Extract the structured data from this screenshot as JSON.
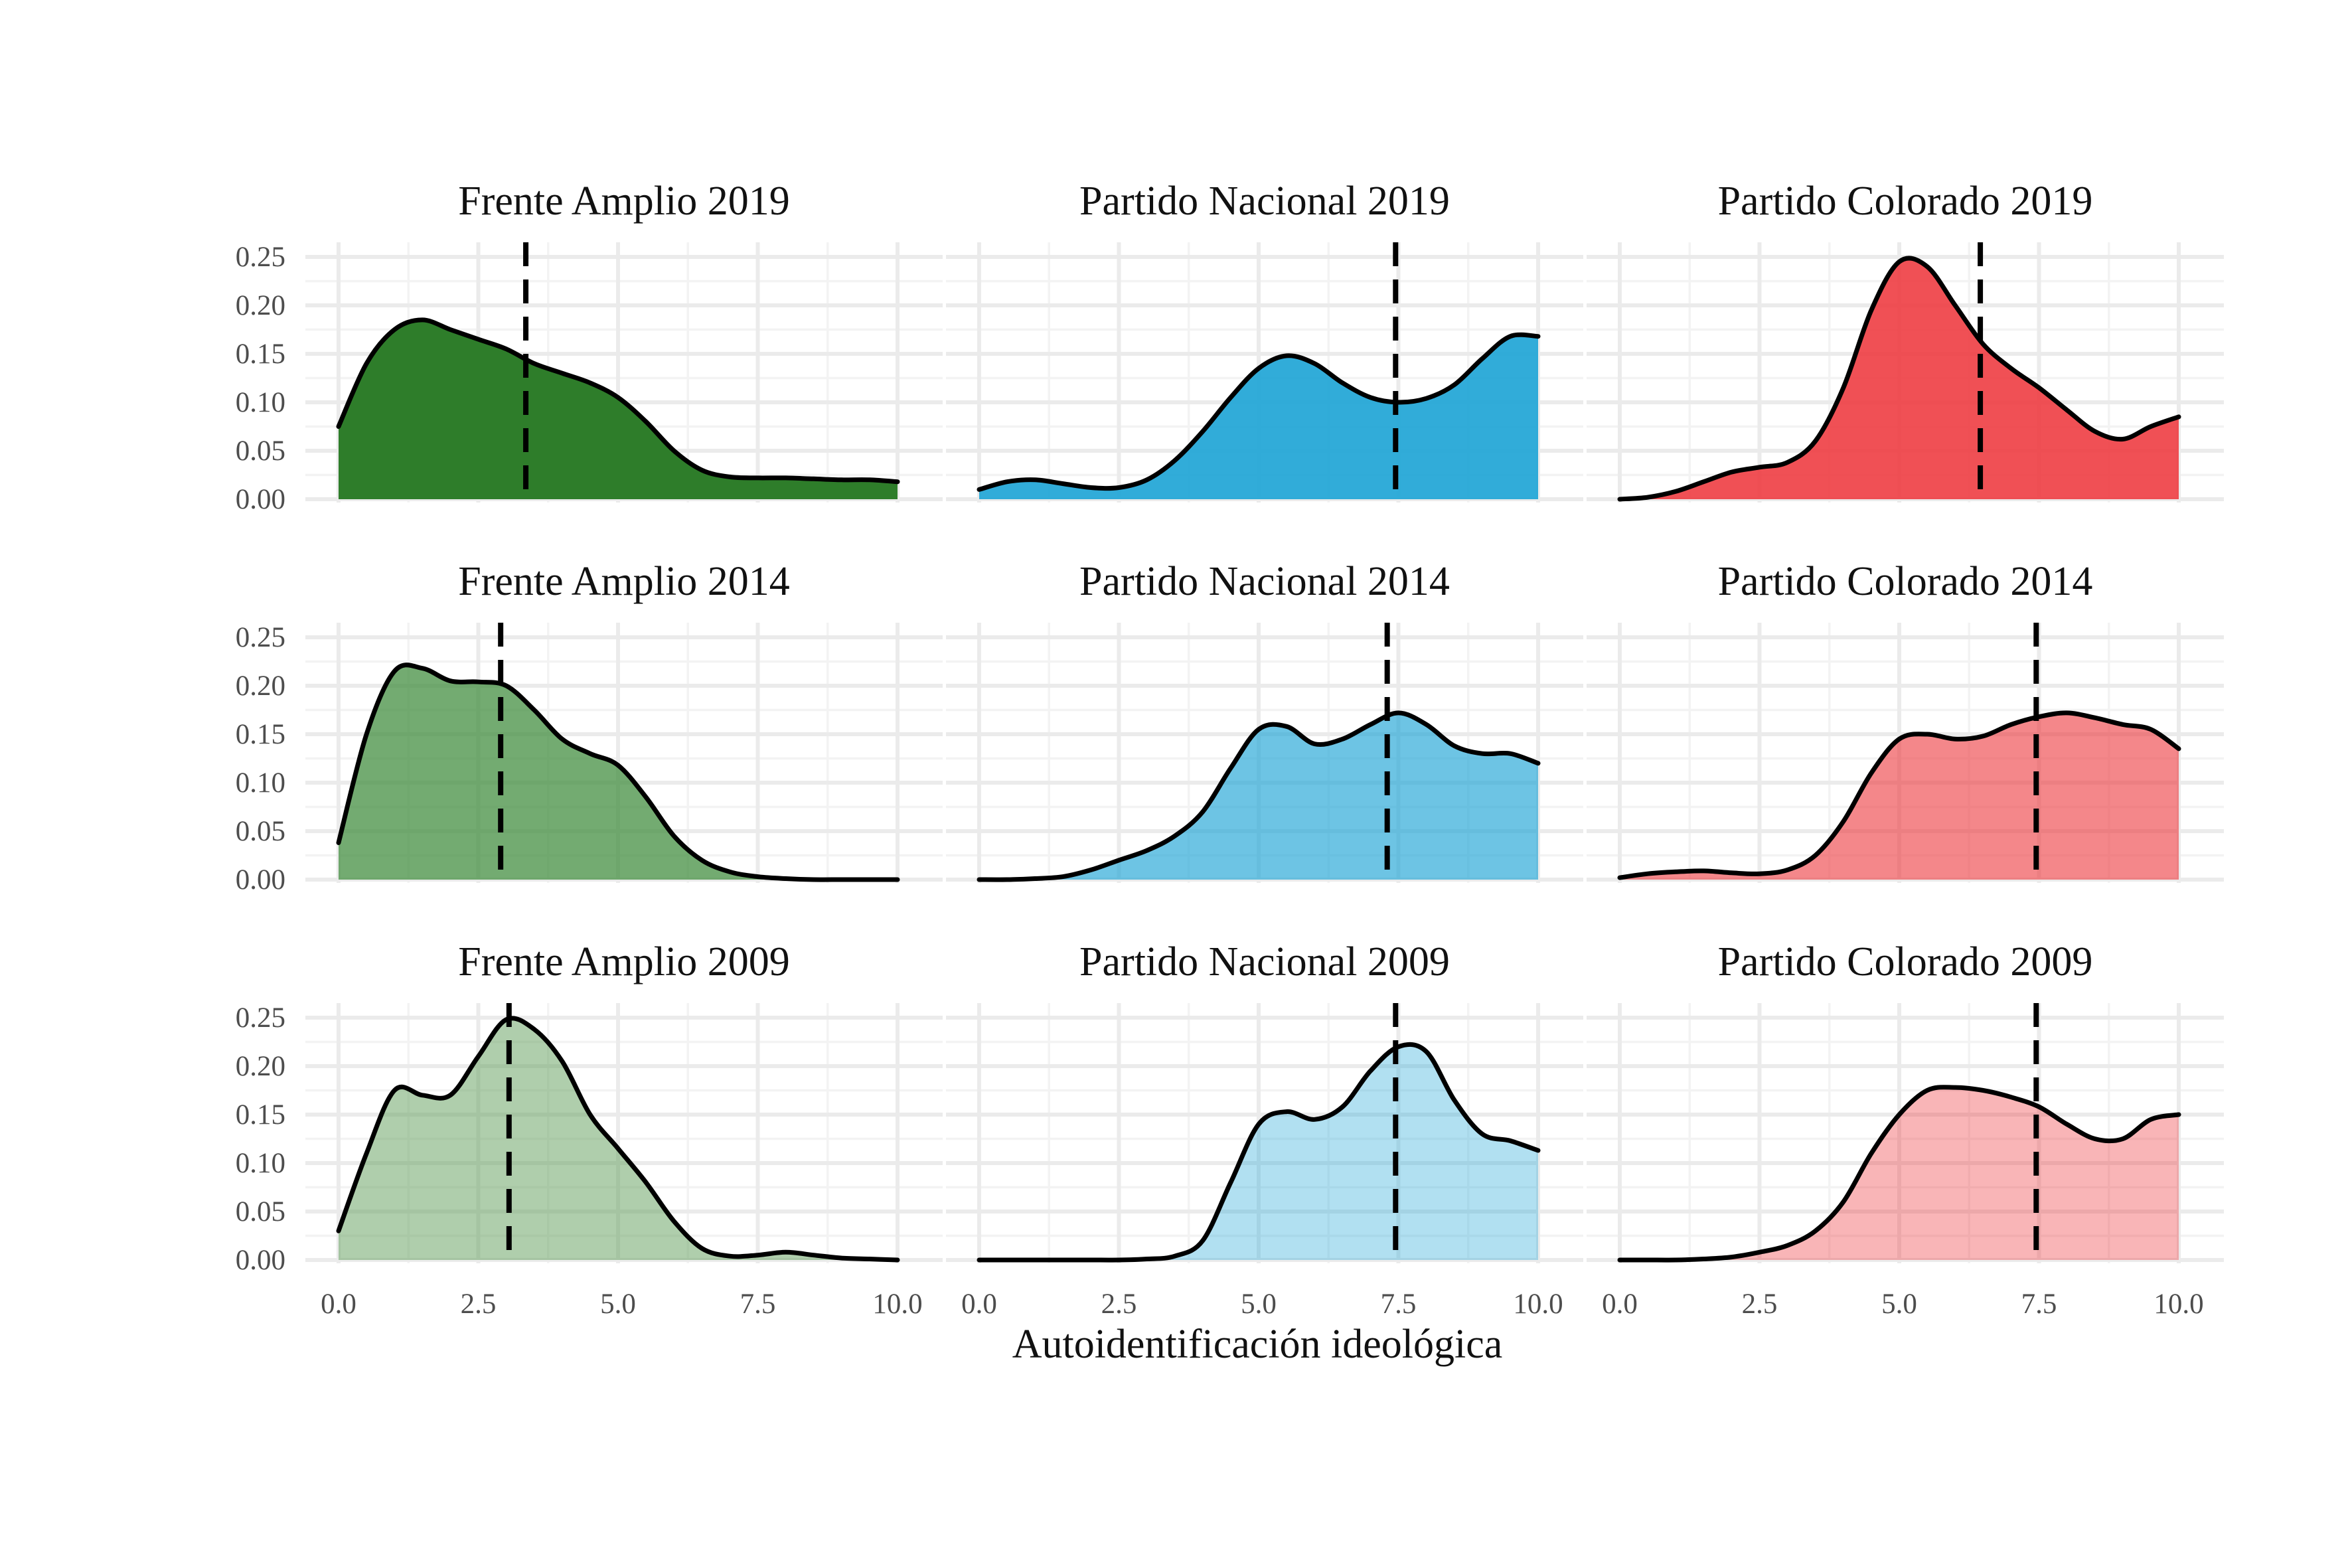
{
  "figure": {
    "xlabel": "Autoidentificación ideológica",
    "xlim": [
      0,
      10
    ],
    "ylim": [
      0,
      0.25
    ],
    "x_ticks": [
      "0.0",
      "2.5",
      "5.0",
      "7.5",
      "10.0"
    ],
    "y_ticks": [
      "0.00",
      "0.05",
      "0.10",
      "0.15",
      "0.20",
      "0.25"
    ],
    "grid": true
  },
  "chart_data": [
    {
      "type": "area",
      "title": "Frente Amplio 2019",
      "row": 0,
      "col": 0,
      "color": "#2e7d2a",
      "opacity": 1.0,
      "median": 3.35,
      "x": [
        0,
        0.5,
        1,
        1.5,
        2,
        2.5,
        3,
        3.5,
        4,
        4.5,
        5,
        5.5,
        6,
        6.5,
        7,
        7.5,
        8,
        8.5,
        9,
        9.5,
        10
      ],
      "y": [
        0.075,
        0.14,
        0.175,
        0.185,
        0.175,
        0.165,
        0.155,
        0.14,
        0.13,
        0.12,
        0.105,
        0.08,
        0.05,
        0.03,
        0.023,
        0.022,
        0.022,
        0.021,
        0.02,
        0.02,
        0.018
      ]
    },
    {
      "type": "area",
      "title": "Partido Nacional 2019",
      "row": 0,
      "col": 1,
      "color": "#1fa5d6",
      "opacity": 0.92,
      "median": 7.45,
      "x": [
        0,
        0.5,
        1,
        1.5,
        2,
        2.5,
        3,
        3.5,
        4,
        4.5,
        5,
        5.5,
        6,
        6.5,
        7,
        7.5,
        8,
        8.5,
        9,
        9.5,
        10
      ],
      "y": [
        0.01,
        0.018,
        0.02,
        0.016,
        0.012,
        0.012,
        0.02,
        0.04,
        0.07,
        0.105,
        0.135,
        0.148,
        0.14,
        0.12,
        0.105,
        0.1,
        0.104,
        0.118,
        0.145,
        0.168,
        0.168
      ]
    },
    {
      "type": "area",
      "title": "Partido Colorado 2019",
      "row": 0,
      "col": 2,
      "color": "#ee3d42",
      "opacity": 0.9,
      "median": 6.45,
      "x": [
        0,
        0.5,
        1,
        1.5,
        2,
        2.5,
        3,
        3.5,
        4,
        4.5,
        5,
        5.5,
        6,
        6.5,
        7,
        7.5,
        8,
        8.5,
        9,
        9.5,
        10
      ],
      "y": [
        0.0,
        0.002,
        0.008,
        0.018,
        0.028,
        0.033,
        0.038,
        0.06,
        0.115,
        0.195,
        0.245,
        0.24,
        0.2,
        0.16,
        0.135,
        0.115,
        0.092,
        0.07,
        0.062,
        0.075,
        0.085
      ]
    },
    {
      "type": "area",
      "title": "Frente Amplio 2014",
      "row": 1,
      "col": 0,
      "color": "#3d8b3a",
      "opacity": 0.72,
      "median": 2.9,
      "x": [
        0,
        0.5,
        1,
        1.5,
        2,
        2.5,
        3,
        3.5,
        4,
        4.5,
        5,
        5.5,
        6,
        6.5,
        7,
        7.5,
        8,
        8.5,
        9,
        9.5,
        10
      ],
      "y": [
        0.038,
        0.15,
        0.215,
        0.218,
        0.205,
        0.204,
        0.2,
        0.175,
        0.145,
        0.13,
        0.118,
        0.085,
        0.045,
        0.02,
        0.008,
        0.003,
        0.001,
        0.0,
        0.0,
        0.0,
        0.0
      ]
    },
    {
      "type": "area",
      "title": "Partido Nacional 2014",
      "row": 1,
      "col": 1,
      "color": "#1fa5d6",
      "opacity": 0.65,
      "median": 7.3,
      "x": [
        0,
        0.5,
        1,
        1.5,
        2,
        2.5,
        3,
        3.5,
        4,
        4.5,
        5,
        5.5,
        6,
        6.5,
        7,
        7.5,
        8,
        8.5,
        9,
        9.5,
        10
      ],
      "y": [
        0.0,
        0.0,
        0.001,
        0.003,
        0.01,
        0.02,
        0.03,
        0.045,
        0.07,
        0.115,
        0.155,
        0.158,
        0.14,
        0.145,
        0.16,
        0.172,
        0.16,
        0.138,
        0.13,
        0.13,
        0.12
      ]
    },
    {
      "type": "area",
      "title": "Partido Colorado 2014",
      "row": 1,
      "col": 2,
      "color": "#ee3d42",
      "opacity": 0.62,
      "median": 7.45,
      "x": [
        0,
        0.5,
        1,
        1.5,
        2,
        2.5,
        3,
        3.5,
        4,
        4.5,
        5,
        5.5,
        6,
        6.5,
        7,
        7.5,
        8,
        8.5,
        9,
        9.5,
        10
      ],
      "y": [
        0.002,
        0.006,
        0.008,
        0.009,
        0.007,
        0.006,
        0.01,
        0.025,
        0.06,
        0.11,
        0.145,
        0.15,
        0.145,
        0.148,
        0.16,
        0.168,
        0.172,
        0.167,
        0.16,
        0.155,
        0.135
      ]
    },
    {
      "type": "area",
      "title": "Frente Amplio 2009",
      "row": 2,
      "col": 0,
      "color": "#5f9e5a",
      "opacity": 0.5,
      "median": 3.05,
      "x": [
        0,
        0.5,
        1,
        1.5,
        2,
        2.5,
        3,
        3.5,
        4,
        4.5,
        5,
        5.5,
        6,
        6.5,
        7,
        7.5,
        8,
        8.5,
        9,
        9.5,
        10
      ],
      "y": [
        0.03,
        0.11,
        0.175,
        0.17,
        0.17,
        0.21,
        0.248,
        0.238,
        0.205,
        0.15,
        0.115,
        0.08,
        0.04,
        0.012,
        0.004,
        0.005,
        0.008,
        0.005,
        0.002,
        0.001,
        0.0
      ]
    },
    {
      "type": "area",
      "title": "Partido Nacional 2009",
      "row": 2,
      "col": 1,
      "color": "#1fa5d6",
      "opacity": 0.35,
      "median": 7.45,
      "x": [
        0,
        0.5,
        1,
        1.5,
        2,
        2.5,
        3,
        3.5,
        4,
        4.5,
        5,
        5.5,
        6,
        6.5,
        7,
        7.5,
        8,
        8.5,
        9,
        9.5,
        10
      ],
      "y": [
        0.0,
        0.0,
        0.0,
        0.0,
        0.0,
        0.0,
        0.001,
        0.004,
        0.02,
        0.08,
        0.14,
        0.153,
        0.145,
        0.158,
        0.195,
        0.22,
        0.215,
        0.165,
        0.13,
        0.123,
        0.113
      ]
    },
    {
      "type": "area",
      "title": "Partido Colorado 2009",
      "row": 2,
      "col": 2,
      "color": "#ee3d42",
      "opacity": 0.38,
      "median": 7.45,
      "x": [
        0,
        0.5,
        1,
        1.5,
        2,
        2.5,
        3,
        3.5,
        4,
        4.5,
        5,
        5.5,
        6,
        6.5,
        7,
        7.5,
        8,
        8.5,
        9,
        9.5,
        10
      ],
      "y": [
        0.0,
        0.0,
        0.0,
        0.001,
        0.003,
        0.008,
        0.015,
        0.03,
        0.06,
        0.11,
        0.15,
        0.175,
        0.178,
        0.175,
        0.168,
        0.158,
        0.14,
        0.125,
        0.125,
        0.145,
        0.15
      ]
    }
  ]
}
